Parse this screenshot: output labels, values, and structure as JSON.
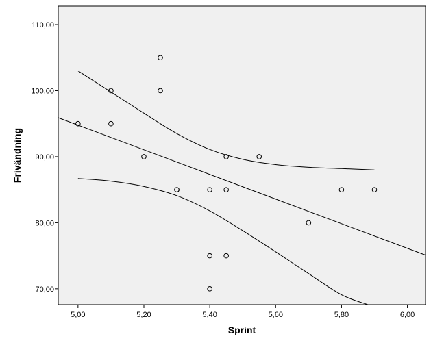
{
  "chart_data": {
    "type": "scatter",
    "title": "",
    "xlabel": "Sprint",
    "ylabel": "Frivändning",
    "xlim": [
      4.94,
      6.055
    ],
    "ylim": [
      67.6,
      112.8
    ],
    "xticks": [
      {
        "value": 5.0,
        "label": "5,00"
      },
      {
        "value": 5.2,
        "label": "5,20"
      },
      {
        "value": 5.4,
        "label": "5,40"
      },
      {
        "value": 5.6,
        "label": "5,60"
      },
      {
        "value": 5.8,
        "label": "5,80"
      },
      {
        "value": 6.0,
        "label": "6,00"
      }
    ],
    "yticks": [
      {
        "value": 70,
        "label": "70,00"
      },
      {
        "value": 80,
        "label": "80,00"
      },
      {
        "value": 90,
        "label": "90,00"
      },
      {
        "value": 100,
        "label": "100,00"
      },
      {
        "value": 110,
        "label": "110,00"
      }
    ],
    "grid": false,
    "points": [
      {
        "x": 5.0,
        "y": 95
      },
      {
        "x": 5.1,
        "y": 100
      },
      {
        "x": 5.1,
        "y": 95
      },
      {
        "x": 5.2,
        "y": 90
      },
      {
        "x": 5.25,
        "y": 105
      },
      {
        "x": 5.25,
        "y": 100
      },
      {
        "x": 5.3,
        "y": 85
      },
      {
        "x": 5.3,
        "y": 85
      },
      {
        "x": 5.4,
        "y": 85
      },
      {
        "x": 5.4,
        "y": 75
      },
      {
        "x": 5.4,
        "y": 70
      },
      {
        "x": 5.45,
        "y": 90
      },
      {
        "x": 5.45,
        "y": 85
      },
      {
        "x": 5.45,
        "y": 75
      },
      {
        "x": 5.55,
        "y": 90
      },
      {
        "x": 5.7,
        "y": 80
      },
      {
        "x": 5.8,
        "y": 85
      },
      {
        "x": 5.9,
        "y": 85
      }
    ],
    "fit_line": [
      {
        "x": 4.94,
        "y": 95.9
      },
      {
        "x": 6.055,
        "y": 75.1
      }
    ],
    "ci_upper": [
      {
        "x": 5.0,
        "y": 103.0
      },
      {
        "x": 5.1,
        "y": 99.8
      },
      {
        "x": 5.2,
        "y": 96.6
      },
      {
        "x": 5.3,
        "y": 93.5
      },
      {
        "x": 5.4,
        "y": 91.1
      },
      {
        "x": 5.5,
        "y": 89.6
      },
      {
        "x": 5.6,
        "y": 88.8
      },
      {
        "x": 5.7,
        "y": 88.4
      },
      {
        "x": 5.8,
        "y": 88.2
      },
      {
        "x": 5.9,
        "y": 88.0
      }
    ],
    "ci_lower": [
      {
        "x": 5.0,
        "y": 86.7
      },
      {
        "x": 5.1,
        "y": 86.3
      },
      {
        "x": 5.2,
        "y": 85.5
      },
      {
        "x": 5.3,
        "y": 84.1
      },
      {
        "x": 5.4,
        "y": 81.8
      },
      {
        "x": 5.5,
        "y": 78.8
      },
      {
        "x": 5.6,
        "y": 75.6
      },
      {
        "x": 5.7,
        "y": 72.3
      },
      {
        "x": 5.8,
        "y": 69.1
      },
      {
        "x": 5.88,
        "y": 67.6
      }
    ],
    "colors": {
      "plot_background": "#f0f0f0",
      "marker_stroke": "#000000",
      "line": "#000000"
    }
  }
}
